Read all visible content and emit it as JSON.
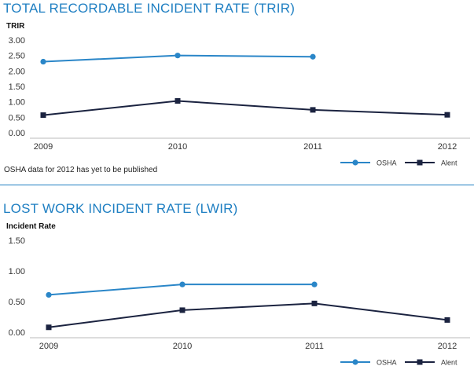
{
  "titles": {
    "trir": "TOTAL RECORDABLE INCIDENT RATE (TRIR)",
    "lwir": "LOST WORK INCIDENT RATE (LWIR)"
  },
  "note": "OSHA data for 2012 has yet to be published",
  "colors": {
    "osha": "#2a86c8",
    "alent": "#1b2340",
    "title": "#1f7fc2"
  },
  "chart_data": [
    {
      "type": "line",
      "title": "TOTAL RECORDABLE INCIDENT RATE (TRIR)",
      "ylabel": "TRIR",
      "xlabel": "",
      "categories": [
        "2009",
        "2010",
        "2011",
        "2012"
      ],
      "ylim": [
        0,
        3
      ],
      "yticks": [
        "3.00",
        "2.50",
        "2.00",
        "1.50",
        "1.00",
        "0.50",
        "0.00"
      ],
      "grid": false,
      "legend_position": "bottom-right",
      "series": [
        {
          "name": "OSHA",
          "values": [
            2.3,
            2.5,
            2.46,
            null
          ],
          "marker": "circle",
          "color": "#2a86c8"
        },
        {
          "name": "Alent",
          "values": [
            0.57,
            1.03,
            0.74,
            0.58
          ],
          "marker": "square",
          "color": "#1b2340"
        }
      ]
    },
    {
      "type": "line",
      "title": "LOST WORK INCIDENT RATE (LWIR)",
      "ylabel": "Incident Rate",
      "xlabel": "",
      "categories": [
        "2009",
        "2010",
        "2011",
        "2012"
      ],
      "ylim": [
        0,
        1.5
      ],
      "yticks": [
        "1.50",
        "1.00",
        "0.50",
        "0.00"
      ],
      "grid": false,
      "legend_position": "bottom-right",
      "series": [
        {
          "name": "OSHA",
          "values": [
            0.61,
            0.78,
            0.78,
            null
          ],
          "marker": "circle",
          "color": "#2a86c8"
        },
        {
          "name": "Alent",
          "values": [
            0.08,
            0.36,
            0.47,
            0.2
          ],
          "marker": "square",
          "color": "#1b2340"
        }
      ]
    }
  ]
}
